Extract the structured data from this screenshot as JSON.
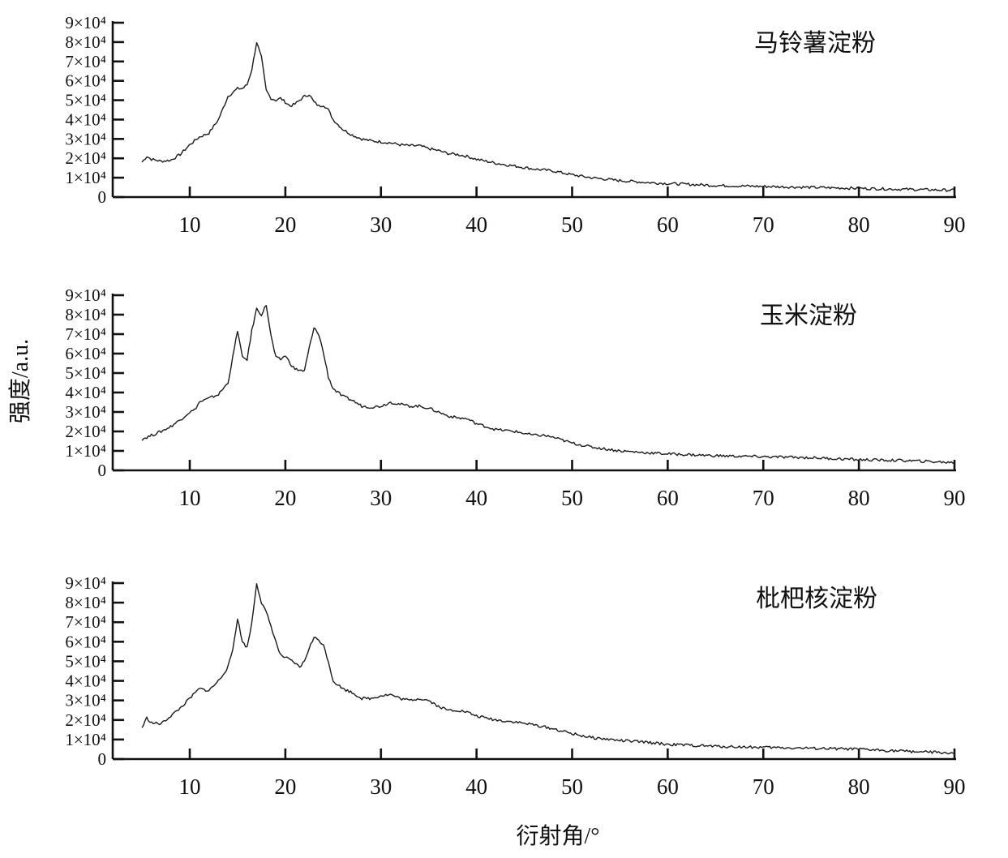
{
  "chart_data": [
    {
      "type": "line",
      "title": "马铃薯淀粉",
      "xlim": [
        5,
        90
      ],
      "ylim": [
        0,
        90000
      ],
      "xticks": [
        "10",
        "20",
        "30",
        "40",
        "50",
        "60",
        "70",
        "80",
        "90"
      ],
      "yticks": [
        "0",
        "1×10⁴",
        "2×10⁴",
        "3×10⁴",
        "4×10⁴",
        "5×10⁴",
        "6×10⁴",
        "7×10⁴",
        "8×10⁴",
        "9×10⁴"
      ],
      "grid": false,
      "x": [
        5,
        5.5,
        6,
        7,
        8,
        9,
        10,
        11,
        12,
        13,
        14,
        15,
        15.5,
        16,
        16.5,
        17,
        17.5,
        18,
        18.5,
        19,
        19.5,
        20,
        20.5,
        21,
        21.5,
        22,
        22.5,
        23,
        23.5,
        24,
        24.5,
        25,
        26,
        27,
        28,
        29,
        30,
        31,
        32,
        33,
        34,
        35,
        36,
        37,
        38,
        39,
        40,
        42,
        44,
        46,
        48,
        50,
        52,
        55,
        58,
        60,
        65,
        70,
        75,
        80,
        85,
        90
      ],
      "y": [
        18000,
        21000,
        19500,
        18500,
        19000,
        22000,
        27000,
        31000,
        33000,
        40000,
        52000,
        56000,
        56000,
        58000,
        66000,
        80000,
        72000,
        55000,
        51000,
        50000,
        51000,
        49000,
        47000,
        48000,
        50000,
        52000,
        53000,
        49000,
        47000,
        47500,
        45000,
        40000,
        35000,
        32000,
        30000,
        29000,
        28500,
        28000,
        27000,
        26500,
        26500,
        25000,
        24000,
        22500,
        22000,
        21000,
        19500,
        17500,
        16000,
        14500,
        13500,
        11500,
        10000,
        8500,
        7500,
        7000,
        6000,
        5500,
        5000,
        4500,
        4000,
        3500
      ]
    },
    {
      "type": "line",
      "title": "玉米淀粉",
      "ylabel": "强度/a.u.",
      "xlim": [
        5,
        90
      ],
      "ylim": [
        0,
        90000
      ],
      "xticks": [
        "10",
        "20",
        "30",
        "40",
        "50",
        "60",
        "70",
        "80",
        "90"
      ],
      "yticks": [
        "0",
        "1×10⁴",
        "2×10⁴",
        "3×10⁴",
        "4×10⁴",
        "5×10⁴",
        "6×10⁴",
        "7×10⁴",
        "8×10⁴",
        "9×10⁴"
      ],
      "grid": false,
      "x": [
        5,
        6,
        7,
        8,
        9,
        10,
        10.5,
        11,
        11.5,
        12,
        13,
        14,
        14.5,
        15,
        15.5,
        16,
        16.5,
        17,
        17.5,
        18,
        18.5,
        19,
        19.5,
        20,
        20.5,
        21,
        22,
        22.5,
        23,
        23.5,
        24,
        24.5,
        25,
        26,
        27,
        28,
        29,
        30,
        31,
        32,
        33,
        34,
        35,
        36,
        37,
        38,
        39,
        40,
        42,
        44,
        46,
        47,
        48,
        50,
        52,
        55,
        58,
        60,
        65,
        70,
        75,
        80,
        85,
        90
      ],
      "y": [
        16000,
        18000,
        20000,
        22500,
        26000,
        30000,
        31000,
        35000,
        36000,
        37000,
        39000,
        45000,
        58000,
        72000,
        58000,
        57000,
        72000,
        83000,
        80000,
        85000,
        69000,
        58000,
        57000,
        59000,
        55000,
        52000,
        51000,
        63000,
        73000,
        70000,
        60000,
        48000,
        42000,
        38000,
        36000,
        33000,
        32500,
        33000,
        35000,
        34000,
        33000,
        33000,
        32000,
        30000,
        28000,
        27000,
        26500,
        24000,
        21000,
        20000,
        18000,
        18000,
        17000,
        14000,
        12000,
        10000,
        9000,
        8500,
        7500,
        7000,
        6500,
        5500,
        5000,
        4000
      ]
    },
    {
      "type": "line",
      "title": "枇杷核淀粉",
      "xlabel": "衍射角/°",
      "xlim": [
        5,
        90
      ],
      "ylim": [
        0,
        90000
      ],
      "xticks": [
        "10",
        "20",
        "30",
        "40",
        "50",
        "60",
        "70",
        "80",
        "90"
      ],
      "yticks": [
        "0",
        "1×10⁴",
        "2×10⁴",
        "3×10⁴",
        "4×10⁴",
        "5×10⁴",
        "6×10⁴",
        "7×10⁴",
        "8×10⁴",
        "9×10⁴"
      ],
      "grid": false,
      "x": [
        5,
        5.5,
        6,
        7,
        8,
        9,
        10,
        11,
        12,
        13,
        14,
        14.5,
        15,
        15.5,
        16,
        16.5,
        17,
        17.5,
        18,
        18.5,
        19,
        19.5,
        20,
        21,
        21.5,
        22,
        22.5,
        23,
        23.5,
        24,
        24.5,
        25,
        26,
        27,
        28,
        29,
        30,
        31,
        32,
        33,
        34,
        35,
        36,
        37,
        38,
        39,
        40,
        42,
        44,
        46,
        48,
        50,
        52,
        55,
        58,
        60,
        65,
        70,
        75,
        80,
        85,
        90
      ],
      "y": [
        16000,
        21000,
        18500,
        18000,
        22000,
        26000,
        31000,
        36000,
        35000,
        40000,
        47000,
        56000,
        72000,
        60000,
        57000,
        70000,
        90000,
        80000,
        75000,
        68000,
        60000,
        53000,
        52000,
        49000,
        47000,
        50000,
        57000,
        62000,
        61000,
        58000,
        50000,
        40000,
        36000,
        34000,
        31000,
        31000,
        32500,
        33000,
        31000,
        30000,
        31000,
        30000,
        27000,
        25000,
        25000,
        24000,
        22000,
        20000,
        19000,
        17500,
        15500,
        13000,
        11000,
        9500,
        8500,
        7500,
        6500,
        6000,
        5500,
        5000,
        4000,
        3000
      ]
    }
  ]
}
